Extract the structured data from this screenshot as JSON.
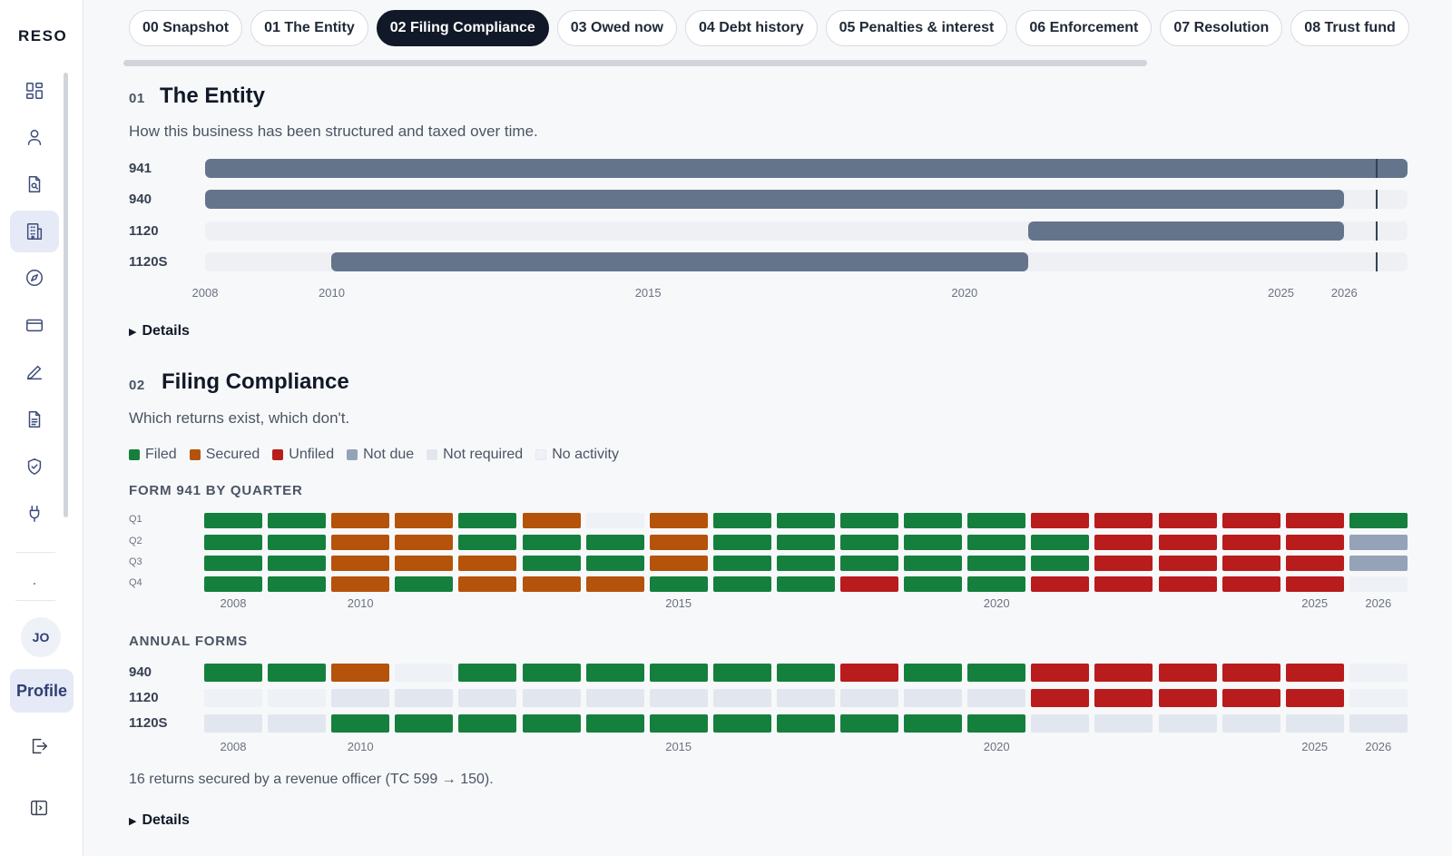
{
  "brand": "RESO",
  "tabs": [
    {
      "label": "00 Snapshot",
      "active": false
    },
    {
      "label": "01 The Entity",
      "active": false
    },
    {
      "label": "02 Filing Compliance",
      "active": true
    },
    {
      "label": "03 Owed now",
      "active": false
    },
    {
      "label": "04 Debt history",
      "active": false
    },
    {
      "label": "05 Penalties & interest",
      "active": false
    },
    {
      "label": "06 Enforcement",
      "active": false
    },
    {
      "label": "07 Resolution",
      "active": false
    },
    {
      "label": "08 Trust fund",
      "active": false
    }
  ],
  "sidebar": {
    "icons": [
      "dashboard-icon",
      "user-icon",
      "document-search-icon",
      "building-icon",
      "compass-icon",
      "credit-card-icon",
      "pen-icon",
      "file-text-icon",
      "shield-check-icon",
      "plug-icon"
    ],
    "active_index": 3,
    "avatar_initials": "JO",
    "profile_label": "Profile",
    "bottom_icons": [
      "logout-icon",
      "panel-toggle-icon"
    ]
  },
  "entity": {
    "num": "01",
    "title": "The Entity",
    "subtitle": "How this business has been structured and taxed over time.",
    "details_label": "Details",
    "axis_years": [
      "2008",
      "2010",
      "2015",
      "2020",
      "2025",
      "2026"
    ],
    "chart_data": {
      "type": "gantt",
      "x_range": [
        2008,
        2027
      ],
      "current_marker": 2026.5,
      "rows": [
        {
          "label": "941",
          "start": 2008,
          "end": 2027
        },
        {
          "label": "940",
          "start": 2008,
          "end": 2026
        },
        {
          "label": "1120",
          "start": 2021,
          "end": 2026
        },
        {
          "label": "1120S",
          "start": 2010,
          "end": 2021
        }
      ]
    }
  },
  "filing": {
    "num": "02",
    "title": "Filing Compliance",
    "subtitle": "Which returns exist, which don't.",
    "legend": [
      {
        "label": "Filed",
        "color": "#15803d"
      },
      {
        "label": "Secured",
        "color": "#b45309"
      },
      {
        "label": "Unfiled",
        "color": "#b91c1c"
      },
      {
        "label": "Not due",
        "color": "#94a3b8"
      },
      {
        "label": "Not required",
        "color": "#e2e6ee"
      },
      {
        "label": "No activity",
        "color": "#eef1f5"
      }
    ],
    "quarter_caption": "FORM 941 BY QUARTER",
    "annual_caption": "ANNUAL FORMS",
    "axis_years": [
      "2008",
      "2010",
      "2015",
      "2020",
      "2025",
      "2026"
    ],
    "note": "16 returns secured by a revenue officer (TC 599 → 150).",
    "details_label": "Details",
    "chart_data": {
      "type": "heatmap",
      "years": [
        2008,
        2009,
        2010,
        2011,
        2012,
        2013,
        2014,
        2015,
        2016,
        2017,
        2018,
        2019,
        2020,
        2021,
        2022,
        2023,
        2024,
        2025,
        2026
      ],
      "status_codes": {
        "F": "Filed",
        "S": "Secured",
        "U": "Unfiled",
        "D": "Not due",
        "R": "Not required",
        "N": "No activity"
      },
      "quarters": [
        {
          "label": "Q1",
          "statuses": [
            "F",
            "F",
            "S",
            "S",
            "F",
            "S",
            "N",
            "S",
            "F",
            "F",
            "F",
            "F",
            "F",
            "U",
            "U",
            "U",
            "U",
            "U",
            "F"
          ]
        },
        {
          "label": "Q2",
          "statuses": [
            "F",
            "F",
            "S",
            "S",
            "F",
            "F",
            "F",
            "S",
            "F",
            "F",
            "F",
            "F",
            "F",
            "F",
            "U",
            "U",
            "U",
            "U",
            "D"
          ]
        },
        {
          "label": "Q3",
          "statuses": [
            "F",
            "F",
            "S",
            "S",
            "S",
            "F",
            "F",
            "S",
            "F",
            "F",
            "F",
            "F",
            "F",
            "F",
            "U",
            "U",
            "U",
            "U",
            "D"
          ]
        },
        {
          "label": "Q4",
          "statuses": [
            "F",
            "F",
            "S",
            "F",
            "S",
            "S",
            "S",
            "F",
            "F",
            "F",
            "U",
            "F",
            "F",
            "U",
            "U",
            "U",
            "U",
            "U",
            "N"
          ]
        }
      ],
      "annual": [
        {
          "label": "940",
          "statuses": [
            "F",
            "F",
            "S",
            "N",
            "F",
            "F",
            "F",
            "F",
            "F",
            "F",
            "U",
            "F",
            "F",
            "U",
            "U",
            "U",
            "U",
            "U",
            "N"
          ]
        },
        {
          "label": "1120",
          "statuses": [
            "N",
            "N",
            "R",
            "R",
            "R",
            "R",
            "R",
            "R",
            "R",
            "R",
            "R",
            "R",
            "R",
            "U",
            "U",
            "U",
            "U",
            "U",
            "N"
          ]
        },
        {
          "label": "1120S",
          "statuses": [
            "R",
            "R",
            "F",
            "F",
            "F",
            "F",
            "F",
            "F",
            "F",
            "F",
            "F",
            "F",
            "F",
            "R",
            "R",
            "R",
            "R",
            "R",
            "R"
          ]
        }
      ]
    }
  }
}
